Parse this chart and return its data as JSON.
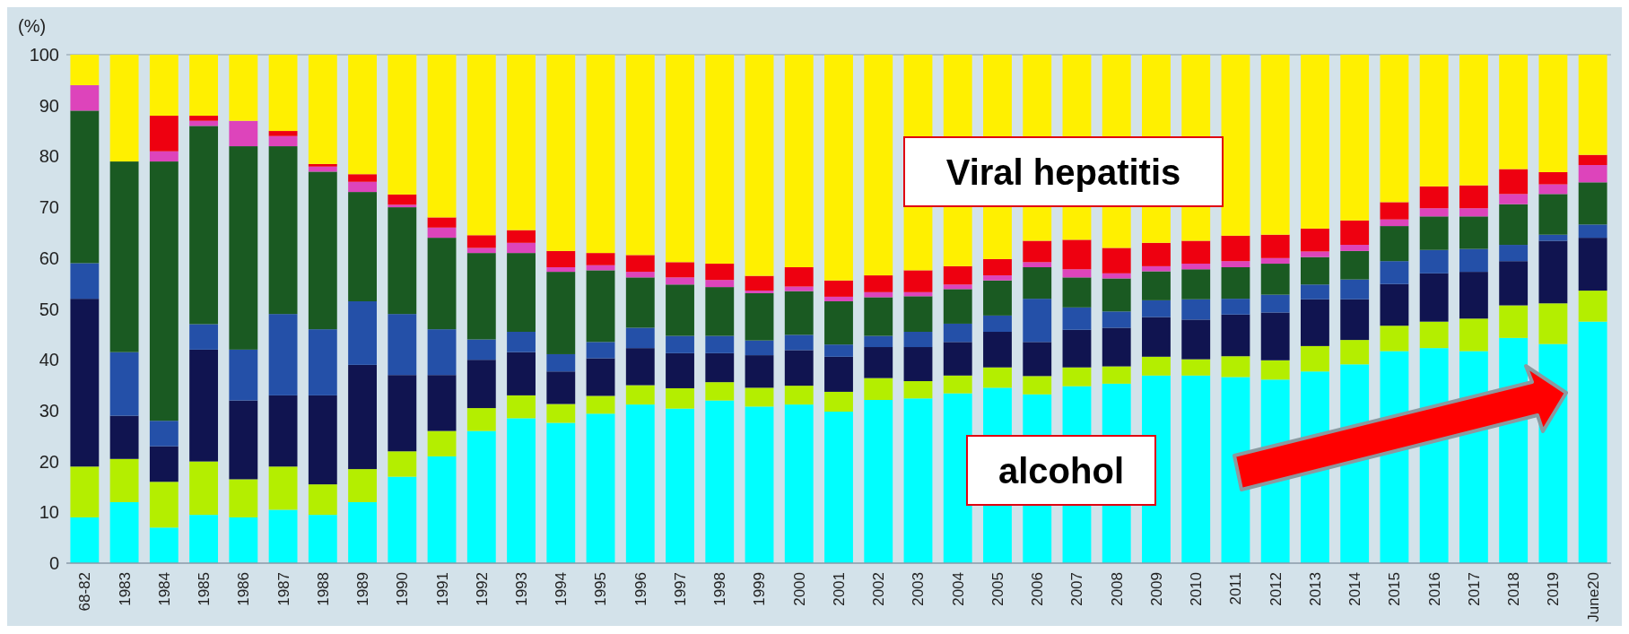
{
  "chart_data": {
    "type": "bar",
    "stacked": true,
    "ylabel": "(%)",
    "ylim": [
      0,
      100
    ],
    "yticks": [
      0,
      10,
      20,
      30,
      40,
      50,
      60,
      70,
      80,
      90,
      100
    ],
    "categories": [
      "68-82",
      "1983",
      "1984",
      "1985",
      "1986",
      "1987",
      "1988",
      "1989",
      "1990",
      "1991",
      "1992",
      "1993",
      "1994",
      "1995",
      "1996",
      "1997",
      "1998",
      "1999",
      "2000",
      "2001",
      "2002",
      "2003",
      "2004",
      "2005",
      "2006",
      "2007",
      "2008",
      "2009",
      "2010",
      "2011",
      "2012",
      "2013",
      "2014",
      "2015",
      "2016",
      "2017",
      "2018",
      "2019",
      "June20"
    ],
    "annotations": [
      "Viral hepatitis",
      "alcohol"
    ],
    "series": [
      {
        "color": "#00ffff",
        "values": [
          9,
          12,
          7,
          9.5,
          9,
          10.5,
          9.5,
          12,
          17,
          21,
          26,
          28.5,
          27.6,
          29.4,
          31.2,
          30.4,
          32,
          30.8,
          31.2,
          29.8,
          32.1,
          32.4,
          33.4,
          34.5,
          33.2,
          34.8,
          35.3,
          36.9,
          36.9,
          36.6,
          36.1,
          37.7,
          39.1,
          41.7,
          42.3,
          41.7,
          44.3,
          43.1,
          47.5
        ]
      },
      {
        "color": "#b4ee00",
        "values": [
          10,
          8.5,
          9,
          10.5,
          7.5,
          8.5,
          6,
          6.5,
          5,
          5,
          4.5,
          4.5,
          3.7,
          3.5,
          3.8,
          4,
          3.6,
          3.7,
          3.7,
          3.9,
          4.3,
          3.4,
          3.5,
          4,
          3.6,
          3.7,
          3.4,
          3.7,
          3.2,
          4.1,
          3.8,
          5,
          4.8,
          5,
          5.2,
          6.4,
          6.4,
          8,
          6.1
        ]
      },
      {
        "color": "#101450",
        "values": [
          33,
          8.5,
          7,
          22,
          15.5,
          14,
          17.5,
          20.5,
          15,
          11,
          9.5,
          8.5,
          6.4,
          7.4,
          7.3,
          6.9,
          5.7,
          6.4,
          7,
          6.9,
          6.1,
          6.7,
          6.6,
          7,
          6.7,
          7.4,
          7.6,
          7.8,
          7.8,
          8.2,
          9.4,
          9.2,
          8,
          8.2,
          9.5,
          9.2,
          8.7,
          12.3,
          10.4
        ]
      },
      {
        "color": "#2450a8",
        "values": [
          7,
          12.5,
          5,
          5,
          10,
          16,
          13,
          12.5,
          12,
          9,
          4,
          4,
          3.4,
          3.2,
          4,
          3.4,
          3.4,
          2.9,
          3,
          2.4,
          2.2,
          3,
          3.6,
          3.2,
          8.5,
          4.4,
          3.2,
          3.3,
          4,
          3.1,
          3.5,
          2.9,
          3.9,
          4.5,
          4.6,
          4.5,
          3.2,
          1.2,
          2.6
        ]
      },
      {
        "color": "#1a5a22",
        "values": [
          30,
          37.5,
          51,
          39,
          40,
          33,
          31,
          21.5,
          21,
          18,
          17,
          15.5,
          16.2,
          14.1,
          9.9,
          10.1,
          9.6,
          9.3,
          8.6,
          8.5,
          7.6,
          7,
          6.8,
          6.9,
          6.2,
          5.9,
          6.5,
          5.7,
          5.9,
          6.2,
          6.1,
          5.4,
          5.6,
          6.9,
          6.6,
          6.4,
          8,
          8,
          8.3
        ]
      },
      {
        "color": "#dd44bb",
        "values": [
          5,
          0,
          2,
          1,
          5,
          2,
          1,
          2,
          0.5,
          2,
          1,
          2,
          0.9,
          1,
          1.1,
          1.4,
          1.4,
          0.5,
          0.9,
          0.9,
          1,
          0.8,
          0.9,
          1,
          1,
          1.6,
          1,
          1,
          1.1,
          1.2,
          1.1,
          1.1,
          1.2,
          1.3,
          1.6,
          1.6,
          2,
          1.9,
          3.4
        ]
      },
      {
        "color": "#ee0010",
        "values": [
          0,
          0,
          7,
          1,
          0,
          1,
          0.5,
          1.5,
          2,
          2,
          2.5,
          2.5,
          3.2,
          2.4,
          3.3,
          3,
          3.2,
          2.9,
          3.8,
          3.2,
          3.3,
          4.3,
          3.6,
          3.2,
          4.2,
          5.8,
          5,
          4.6,
          4.5,
          5,
          4.6,
          4.5,
          4.8,
          3.4,
          4.3,
          4.5,
          4.9,
          2.4,
          2
        ]
      },
      {
        "color": "#fff000",
        "values": [
          6,
          21,
          12,
          12,
          13,
          15,
          21.5,
          23.5,
          27.5,
          32,
          35.5,
          34.5,
          38.6,
          39,
          39.4,
          40.8,
          41.1,
          43.5,
          41.8,
          44.4,
          43.4,
          42.4,
          41.6,
          40.2,
          36.6,
          36.4,
          38,
          37,
          36.6,
          35.6,
          35.4,
          34.2,
          32.6,
          29,
          25.9,
          25.7,
          22.5,
          23.1,
          19.7
        ]
      }
    ]
  }
}
